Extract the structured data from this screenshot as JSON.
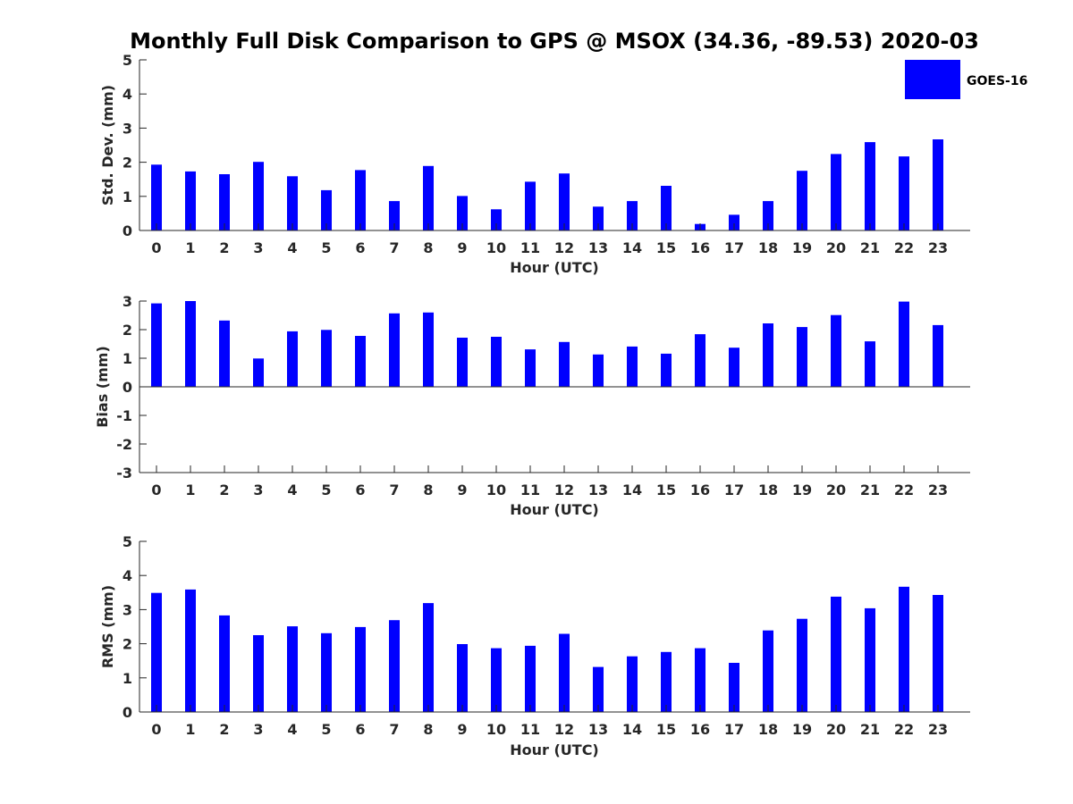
{
  "title": "Monthly Full Disk Comparison to GPS @ MSOX (34.36, -89.53) 2020-03",
  "legend": {
    "label": "GOES-16",
    "color": "#0000ff"
  },
  "chart_data": [
    {
      "type": "bar",
      "name": "std",
      "categories": [
        "0",
        "1",
        "2",
        "3",
        "4",
        "5",
        "6",
        "7",
        "8",
        "9",
        "10",
        "11",
        "12",
        "13",
        "14",
        "15",
        "16",
        "17",
        "18",
        "19",
        "20",
        "21",
        "22",
        "23"
      ],
      "values": [
        1.93,
        1.73,
        1.65,
        2.01,
        1.59,
        1.18,
        1.77,
        0.86,
        1.89,
        1.01,
        0.62,
        1.43,
        1.67,
        0.7,
        0.86,
        1.31,
        0.19,
        0.46,
        0.86,
        1.75,
        2.24,
        2.59,
        2.17,
        2.67
      ],
      "title": "",
      "xlabel": "Hour (UTC)",
      "ylabel": "Std. Dev. (mm)",
      "ylim": [
        0,
        5
      ],
      "yticks": [
        "0",
        "1",
        "2",
        "3",
        "4",
        "5"
      ],
      "grid": false,
      "color": "#0000ff"
    },
    {
      "type": "bar",
      "name": "bias",
      "categories": [
        "0",
        "1",
        "2",
        "3",
        "4",
        "5",
        "6",
        "7",
        "8",
        "9",
        "10",
        "11",
        "12",
        "13",
        "14",
        "15",
        "16",
        "17",
        "18",
        "19",
        "20",
        "21",
        "22",
        "23"
      ],
      "values": [
        2.92,
        3.0,
        2.32,
        0.99,
        1.94,
        1.99,
        1.78,
        2.57,
        2.6,
        1.72,
        1.75,
        1.31,
        1.57,
        1.13,
        1.41,
        1.16,
        1.84,
        1.37,
        2.22,
        2.09,
        2.51,
        1.59,
        2.98,
        2.16
      ],
      "title": "",
      "xlabel": "Hour (UTC)",
      "ylabel": "Bias (mm)",
      "ylim": [
        -3,
        3
      ],
      "yticks": [
        "-3",
        "-2",
        "-1",
        "0",
        "1",
        "2",
        "3"
      ],
      "grid": false,
      "color": "#0000ff"
    },
    {
      "type": "bar",
      "name": "rms",
      "categories": [
        "0",
        "1",
        "2",
        "3",
        "4",
        "5",
        "6",
        "7",
        "8",
        "9",
        "10",
        "11",
        "12",
        "13",
        "14",
        "15",
        "16",
        "17",
        "18",
        "19",
        "20",
        "21",
        "22",
        "23"
      ],
      "values": [
        3.49,
        3.59,
        2.83,
        2.25,
        2.51,
        2.31,
        2.49,
        2.69,
        3.19,
        1.99,
        1.87,
        1.94,
        2.29,
        1.32,
        1.63,
        1.76,
        1.87,
        1.44,
        2.39,
        2.73,
        3.38,
        3.04,
        3.67,
        3.43
      ],
      "title": "",
      "xlabel": "Hour (UTC)",
      "ylabel": "RMS (mm)",
      "ylim": [
        0,
        5
      ],
      "yticks": [
        "0",
        "1",
        "2",
        "3",
        "4",
        "5"
      ],
      "grid": false,
      "color": "#0000ff"
    }
  ]
}
